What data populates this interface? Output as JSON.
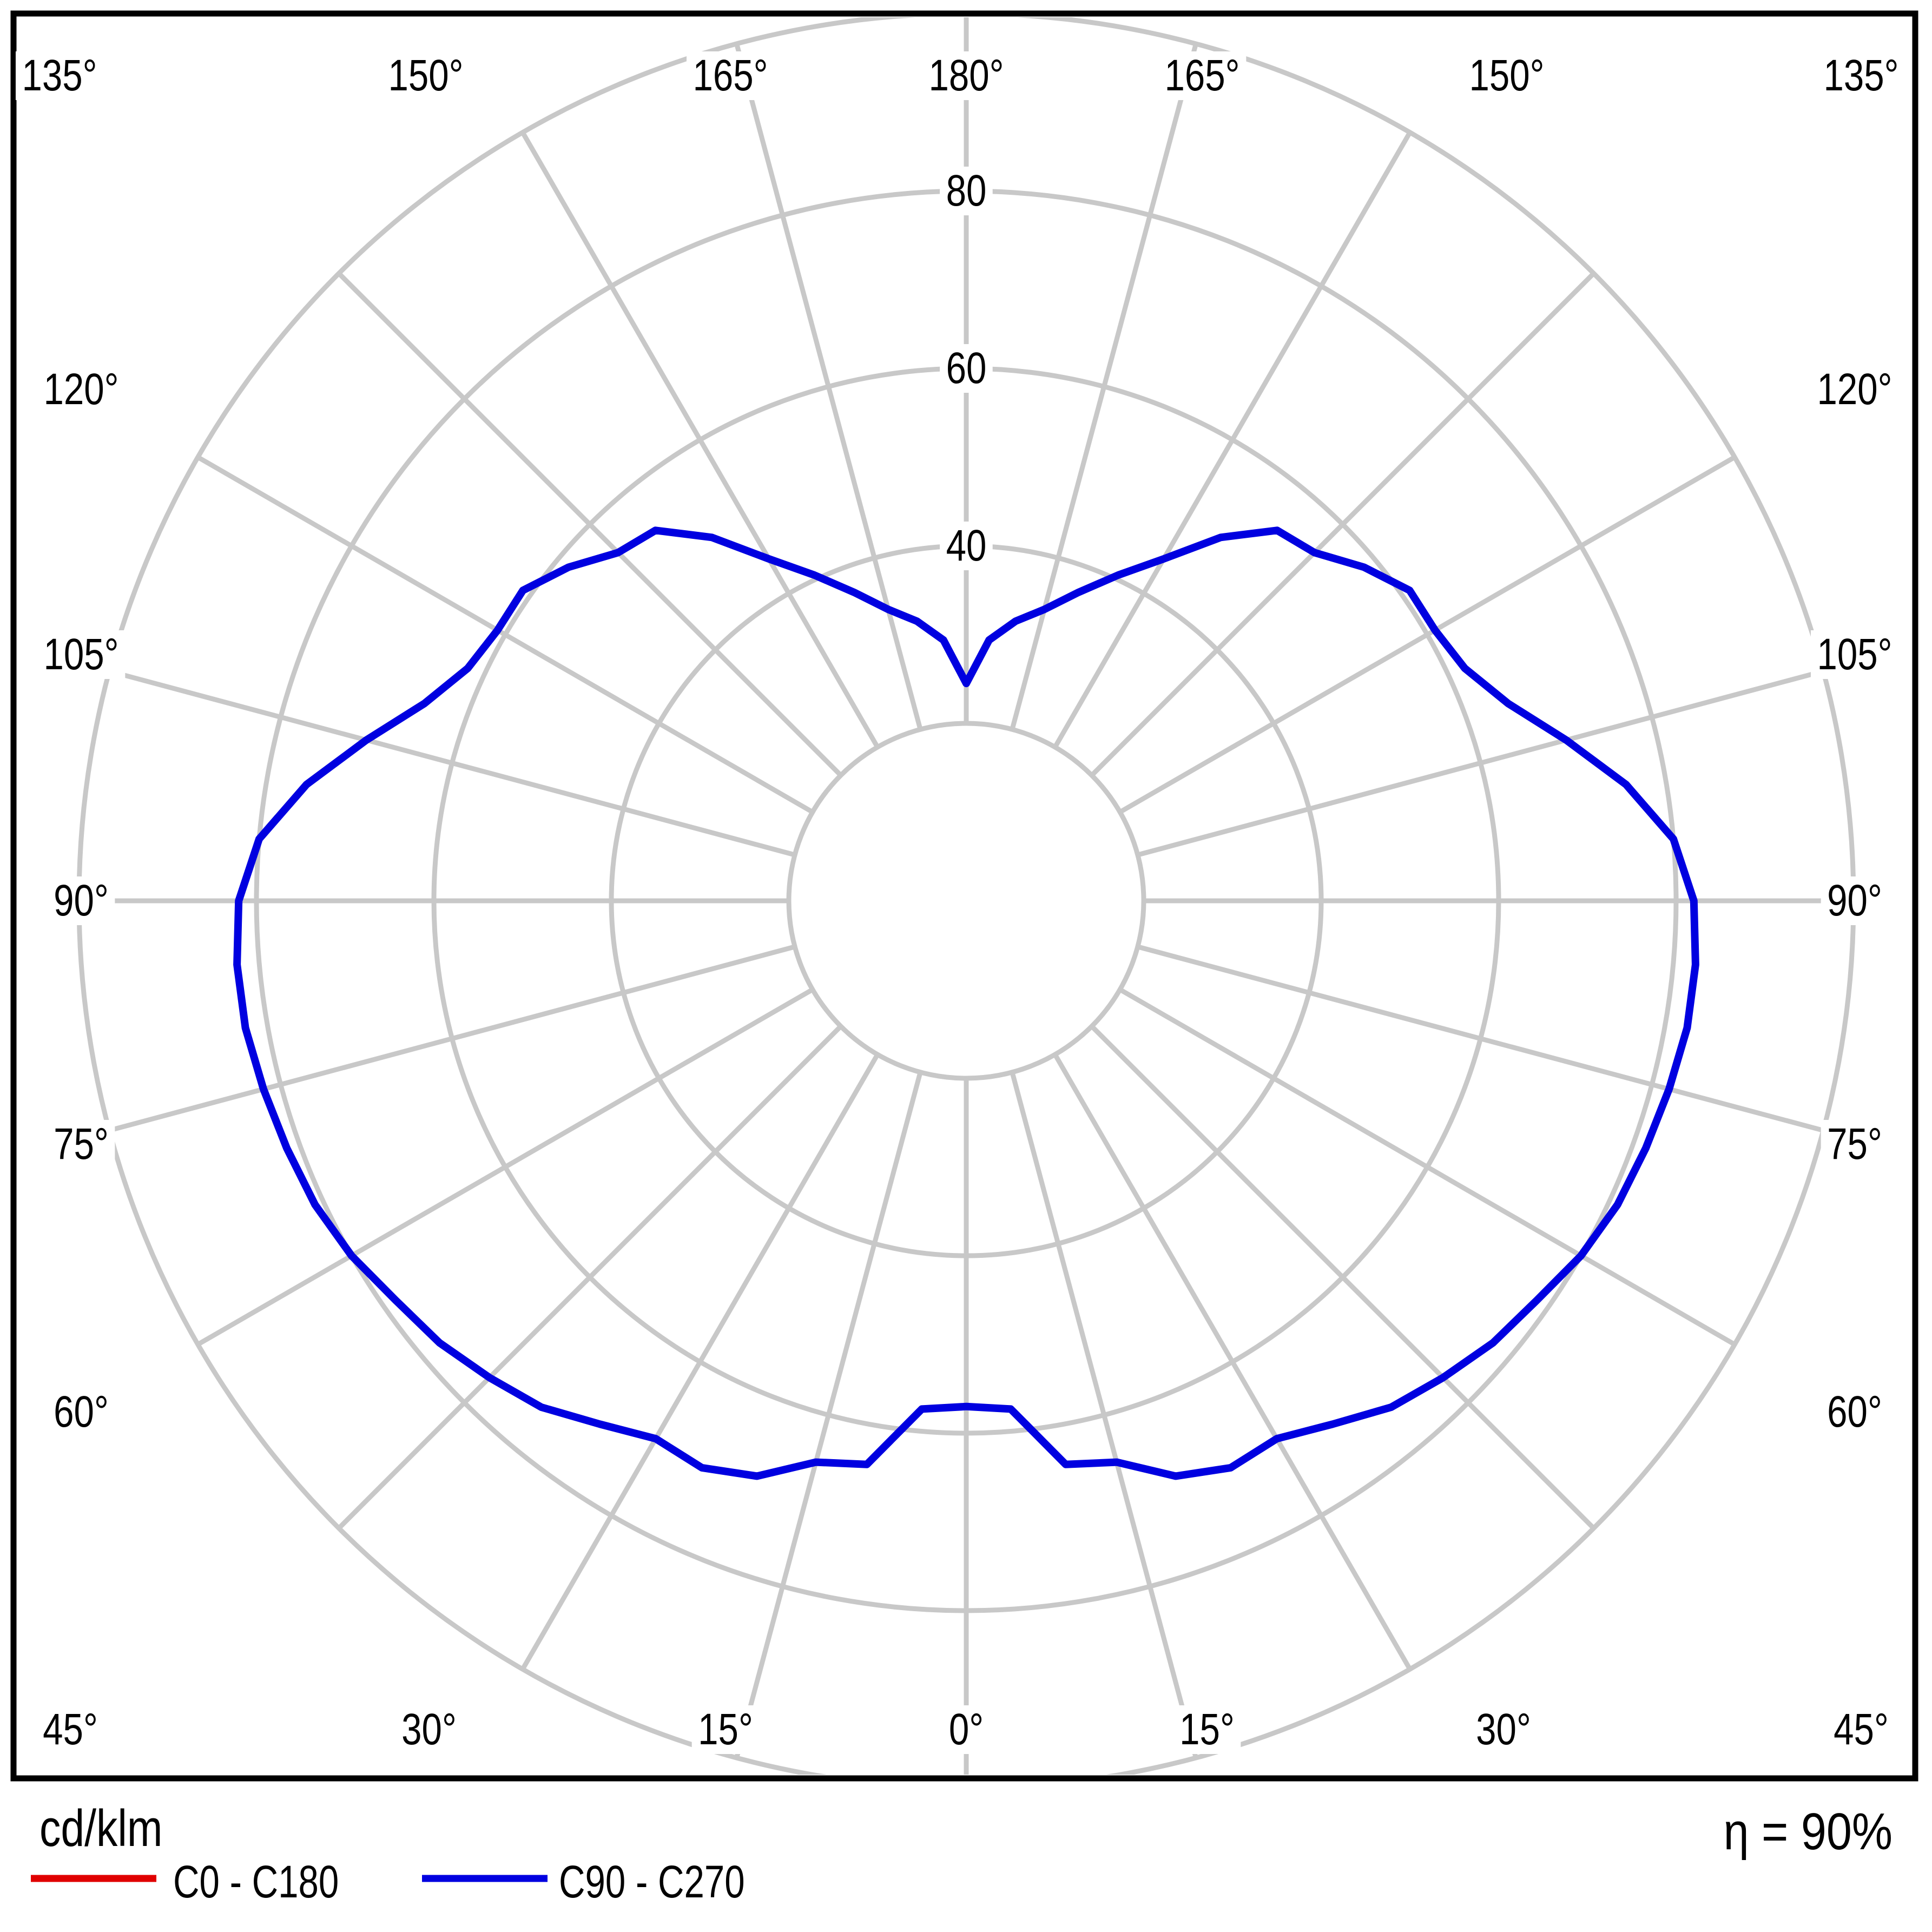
{
  "page": {
    "background": "#ffffff"
  },
  "chart_data": {
    "type": "line",
    "coordinate_system": "polar",
    "description": "Luminaire polar luminous intensity distribution diagram",
    "units_label": "cd/klm",
    "efficiency_label": "η = 90%",
    "angle_step_deg": 15,
    "radial_ticks": [
      20,
      40,
      60,
      80,
      100
    ],
    "radial_tick_labels_shown": [
      "40",
      "60",
      "80"
    ],
    "rlim": [
      0,
      100
    ],
    "grid_color": "#c8c8c8",
    "frame_color": "#000000",
    "legend_position": "bottom-left",
    "legend": [
      {
        "label": "C0 - C180",
        "color": "#e00000"
      },
      {
        "label": "C90 - C270",
        "color": "#0000e0"
      }
    ],
    "note": "Only the blue C90 - C270 curve is visible in the plot area; gamma measured from 0° (nadir, bottom) to 180° (top), curve mirrored left/right.",
    "series": [
      {
        "name": "C90 - C270",
        "color": "#0000e0",
        "symmetric": true,
        "gamma_deg": [
          0,
          5,
          10,
          15,
          20,
          25,
          30,
          35,
          40,
          45,
          50,
          55,
          60,
          65,
          70,
          75,
          80,
          85,
          90,
          95,
          100,
          105,
          110,
          115,
          120,
          125,
          130,
          135,
          140,
          145,
          150,
          155,
          160,
          165,
          170,
          175,
          180
        ],
        "values_cd_per_klm": [
          57,
          57.5,
          64.5,
          65.5,
          69,
          70.5,
          70,
          72,
          74.5,
          76,
          77.5,
          78.5,
          80,
          81,
          81.5,
          82,
          82.5,
          82.5,
          82,
          80,
          75.5,
          70,
          65,
          62,
          61,
          61,
          58.5,
          55.5,
          54.5,
          50,
          44.5,
          40.5,
          37,
          34,
          32,
          29.5,
          24.5
        ]
      }
    ]
  },
  "axis_labels": {
    "top": [
      "135°",
      "150°",
      "165°",
      "180°",
      "165°",
      "150°",
      "135°"
    ],
    "bottom": [
      "45°",
      "30°",
      "15°",
      "0°",
      "15°",
      "30°",
      "45°"
    ],
    "left": [
      "120°",
      "105°",
      "90°",
      "75°",
      "60°"
    ],
    "right": [
      "120°",
      "105°",
      "90°",
      "75°",
      "60°"
    ],
    "radial": [
      "40",
      "60",
      "80"
    ]
  },
  "footer": {
    "unit": "cd/klm",
    "efficiency": "η = 90%"
  }
}
